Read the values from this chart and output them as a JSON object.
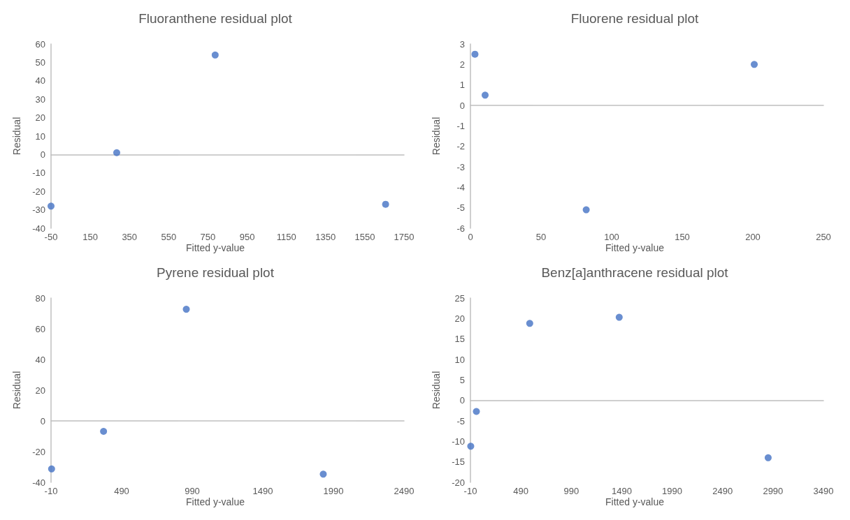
{
  "chart_data": [
    {
      "type": "scatter",
      "title": "Fluoranthene residual plot",
      "xlabel": "Fitted y-value",
      "ylabel": "Residual",
      "color": "#4472c4",
      "marker": "circle",
      "x": [
        -50,
        285,
        787,
        1656
      ],
      "values": [
        -28,
        1,
        54,
        -27
      ],
      "xlim": [
        -50,
        1750
      ],
      "xticks": [
        -50,
        150,
        350,
        550,
        750,
        950,
        1150,
        1350,
        1550,
        1750
      ],
      "ylim": [
        -40,
        60
      ],
      "yticks": [
        -40,
        -30,
        -20,
        -10,
        0,
        10,
        20,
        30,
        40,
        50,
        60
      ]
    },
    {
      "type": "scatter",
      "title": "Fluorene residual plot",
      "xlabel": "Fitted y-value",
      "ylabel": "Residual",
      "color": "#4472c4",
      "marker": "circle",
      "x": [
        3.2,
        10.4,
        82,
        201
      ],
      "values": [
        2.5,
        0.5,
        -5.1,
        2.0
      ],
      "xlim": [
        0,
        250
      ],
      "xticks": [
        0,
        50,
        100,
        150,
        200,
        250
      ],
      "ylim": [
        -6,
        3
      ],
      "yticks": [
        -6,
        -5,
        -4,
        -3,
        -2,
        -1,
        0,
        1,
        2,
        3
      ]
    },
    {
      "type": "scatter",
      "title": "Pyrene residual plot",
      "xlabel": "Fitted y-value",
      "ylabel": "Residual",
      "color": "#4472c4",
      "marker": "circle",
      "x": [
        -6,
        362,
        948,
        1918
      ],
      "values": [
        -31.3,
        -6.8,
        72.7,
        -34.7
      ],
      "xlim": [
        -10,
        2490
      ],
      "xticks": [
        -10,
        490,
        990,
        1490,
        1990,
        2490
      ],
      "ylim": [
        -40,
        80
      ],
      "yticks": [
        -40,
        -20,
        0,
        20,
        40,
        60,
        80
      ]
    },
    {
      "type": "scatter",
      "title": "Benz[a]anthracene residual plot",
      "xlabel": "Fitted y-value",
      "ylabel": "Residual",
      "color": "#4472c4",
      "marker": "circle",
      "x": [
        -7,
        49,
        578,
        1465,
        2942
      ],
      "values": [
        -11.2,
        -2.7,
        18.8,
        20.3,
        -14.0
      ],
      "xlim": [
        -10,
        3490
      ],
      "xticks": [
        -10,
        490,
        990,
        1490,
        1990,
        2490,
        2990,
        3490
      ],
      "ylim": [
        -20,
        25
      ],
      "yticks": [
        -20,
        -15,
        -10,
        -5,
        0,
        5,
        10,
        15,
        20,
        25
      ]
    }
  ]
}
